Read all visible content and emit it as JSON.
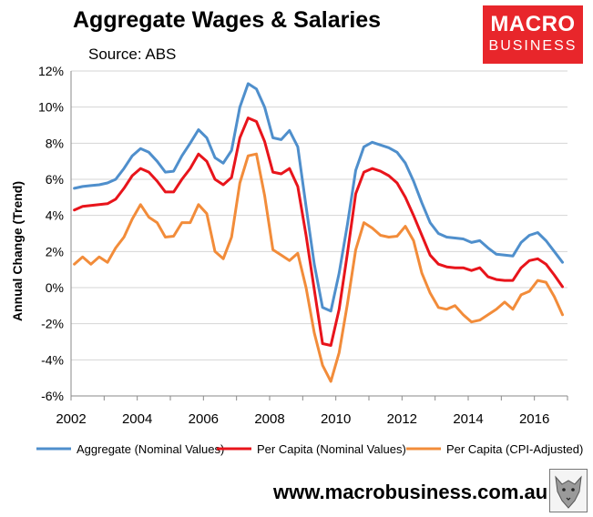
{
  "header": {
    "title": "Aggregate Wages & Salaries",
    "source": "Source: ABS"
  },
  "logo": {
    "line1": "MACRO",
    "line2": "BUSINESS"
  },
  "footer": {
    "url": "www.macrobusiness.com.au"
  },
  "chart_data": {
    "type": "line",
    "title": "Aggregate Wages & Salaries",
    "xlabel": "",
    "ylabel": "Annual Change (Trend)",
    "xlim": [
      2002,
      2017
    ],
    "ylim": [
      -6,
      12
    ],
    "x_ticks": [
      2002,
      2004,
      2006,
      2008,
      2010,
      2012,
      2014,
      2016
    ],
    "y_ticks": [
      -6,
      -4,
      -2,
      0,
      2,
      4,
      6,
      8,
      10,
      12
    ],
    "y_tick_labels": [
      "-6%",
      "-4%",
      "-2%",
      "0%",
      "2%",
      "4%",
      "6%",
      "8%",
      "10%",
      "12%"
    ],
    "grid": "horizontal",
    "legend_position": "bottom",
    "series": [
      {
        "name": "Aggregate (Nominal Values)",
        "color": "#4f8fcc",
        "x": [
          2002.1,
          2002.35,
          2002.6,
          2002.85,
          2003.1,
          2003.35,
          2003.6,
          2003.85,
          2004.1,
          2004.35,
          2004.6,
          2004.85,
          2005.1,
          2005.35,
          2005.6,
          2005.85,
          2006.1,
          2006.35,
          2006.6,
          2006.85,
          2007.1,
          2007.35,
          2007.6,
          2007.85,
          2008.1,
          2008.35,
          2008.6,
          2008.85,
          2009.1,
          2009.35,
          2009.6,
          2009.85,
          2010.1,
          2010.35,
          2010.6,
          2010.85,
          2011.1,
          2011.35,
          2011.6,
          2011.85,
          2012.1,
          2012.35,
          2012.6,
          2012.85,
          2013.1,
          2013.35,
          2013.6,
          2013.85,
          2014.1,
          2014.35,
          2014.6,
          2014.85,
          2015.1,
          2015.35,
          2015.6,
          2015.85,
          2016.1,
          2016.35,
          2016.6,
          2016.85
        ],
        "values": [
          5.5,
          5.6,
          5.65,
          5.7,
          5.8,
          6.0,
          6.6,
          7.3,
          7.7,
          7.5,
          7.0,
          6.4,
          6.45,
          7.3,
          8.0,
          8.75,
          8.3,
          7.2,
          6.9,
          7.6,
          10.0,
          11.3,
          11.0,
          10.0,
          8.3,
          8.2,
          8.7,
          7.8,
          4.5,
          1.3,
          -1.1,
          -1.3,
          0.8,
          3.5,
          6.5,
          7.8,
          8.05,
          7.9,
          7.75,
          7.5,
          6.9,
          5.9,
          4.7,
          3.6,
          3.0,
          2.8,
          2.75,
          2.7,
          2.5,
          2.6,
          2.2,
          1.85,
          1.8,
          1.75,
          2.5,
          2.9,
          3.05,
          2.6,
          2.0,
          1.4
        ]
      },
      {
        "name": "Per Capita (Nominal Values)",
        "color": "#e8141b",
        "x": [
          2002.1,
          2002.35,
          2002.6,
          2002.85,
          2003.1,
          2003.35,
          2003.6,
          2003.85,
          2004.1,
          2004.35,
          2004.6,
          2004.85,
          2005.1,
          2005.35,
          2005.6,
          2005.85,
          2006.1,
          2006.35,
          2006.6,
          2006.85,
          2007.1,
          2007.35,
          2007.6,
          2007.85,
          2008.1,
          2008.35,
          2008.6,
          2008.85,
          2009.1,
          2009.35,
          2009.6,
          2009.85,
          2010.1,
          2010.35,
          2010.6,
          2010.85,
          2011.1,
          2011.35,
          2011.6,
          2011.85,
          2012.1,
          2012.35,
          2012.6,
          2012.85,
          2013.1,
          2013.35,
          2013.6,
          2013.85,
          2014.1,
          2014.35,
          2014.6,
          2014.85,
          2015.1,
          2015.35,
          2015.6,
          2015.85,
          2016.1,
          2016.35,
          2016.6,
          2016.85
        ],
        "values": [
          4.3,
          4.5,
          4.55,
          4.6,
          4.65,
          4.9,
          5.5,
          6.2,
          6.6,
          6.4,
          5.9,
          5.3,
          5.3,
          6.0,
          6.6,
          7.4,
          7.0,
          6.0,
          5.7,
          6.1,
          8.3,
          9.4,
          9.2,
          8.1,
          6.4,
          6.3,
          6.6,
          5.6,
          2.9,
          -0.1,
          -3.1,
          -3.2,
          -1.2,
          1.9,
          5.2,
          6.4,
          6.6,
          6.45,
          6.2,
          5.8,
          5.0,
          4.0,
          2.9,
          1.8,
          1.3,
          1.15,
          1.1,
          1.1,
          0.95,
          1.1,
          0.6,
          0.45,
          0.4,
          0.4,
          1.1,
          1.5,
          1.6,
          1.3,
          0.7,
          0.05
        ]
      },
      {
        "name": "Per Capita (CPI-Adjusted)",
        "color": "#f28c3a",
        "x": [
          2002.1,
          2002.35,
          2002.6,
          2002.85,
          2003.1,
          2003.35,
          2003.6,
          2003.85,
          2004.1,
          2004.35,
          2004.6,
          2004.85,
          2005.1,
          2005.35,
          2005.6,
          2005.85,
          2006.1,
          2006.35,
          2006.6,
          2006.85,
          2007.1,
          2007.35,
          2007.6,
          2007.85,
          2008.1,
          2008.35,
          2008.6,
          2008.85,
          2009.1,
          2009.35,
          2009.6,
          2009.85,
          2010.1,
          2010.35,
          2010.6,
          2010.85,
          2011.1,
          2011.35,
          2011.6,
          2011.85,
          2012.1,
          2012.35,
          2012.6,
          2012.85,
          2013.1,
          2013.35,
          2013.6,
          2013.85,
          2014.1,
          2014.35,
          2014.6,
          2014.85,
          2015.1,
          2015.35,
          2015.6,
          2015.85,
          2016.1,
          2016.35,
          2016.6,
          2016.85
        ],
        "values": [
          1.3,
          1.7,
          1.3,
          1.7,
          1.4,
          2.2,
          2.8,
          3.8,
          4.6,
          3.9,
          3.6,
          2.8,
          2.85,
          3.6,
          3.6,
          4.6,
          4.1,
          2.0,
          1.6,
          2.8,
          5.8,
          7.3,
          7.4,
          5.1,
          2.1,
          1.8,
          1.5,
          1.9,
          0.0,
          -2.5,
          -4.3,
          -5.2,
          -3.6,
          -0.9,
          2.1,
          3.6,
          3.3,
          2.9,
          2.8,
          2.85,
          3.4,
          2.6,
          0.8,
          -0.3,
          -1.1,
          -1.2,
          -1.0,
          -1.5,
          -1.9,
          -1.8,
          -1.5,
          -1.2,
          -0.8,
          -1.2,
          -0.4,
          -0.2,
          0.4,
          0.3,
          -0.5,
          -1.5
        ]
      }
    ]
  }
}
